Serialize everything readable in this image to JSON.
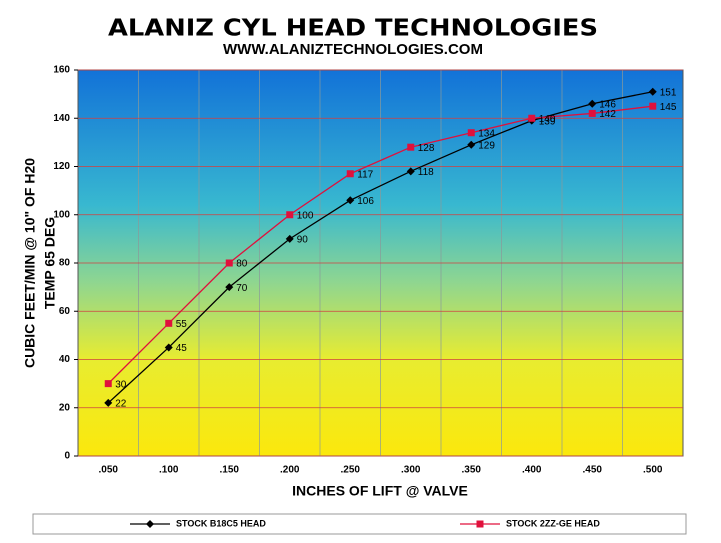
{
  "chart_data": {
    "type": "line",
    "title": "ALANIZ CYL HEAD TECHNOLOGIES",
    "subtitle": "WWW.ALANIZTECHNOLOGIES.COM",
    "y_label": "CUBIC FEET/MIN @ 10\" OF H20",
    "y_label_2": "TEMP 65 DEG",
    "x_label": "INCHES OF LIFT @ VALVE",
    "categories": [
      ".050",
      ".100",
      ".150",
      ".200",
      ".250",
      ".300",
      ".350",
      ".400",
      ".450",
      ".500"
    ],
    "series": [
      {
        "name": "STOCK B18C5 HEAD",
        "color": "#000000",
        "marker": "diamond",
        "values": [
          22,
          45,
          70,
          90,
          106,
          118,
          129,
          139,
          146,
          151
        ]
      },
      {
        "name": "STOCK 2ZZ-GE HEAD",
        "color": "#e0103c",
        "marker": "square",
        "values": [
          30,
          55,
          80,
          100,
          117,
          128,
          134,
          140,
          142,
          145
        ]
      }
    ],
    "ylim": [
      0,
      160
    ],
    "yticks": [
      0,
      20,
      40,
      60,
      80,
      100,
      120,
      140,
      160
    ],
    "grid": true,
    "legend": "bottom"
  }
}
